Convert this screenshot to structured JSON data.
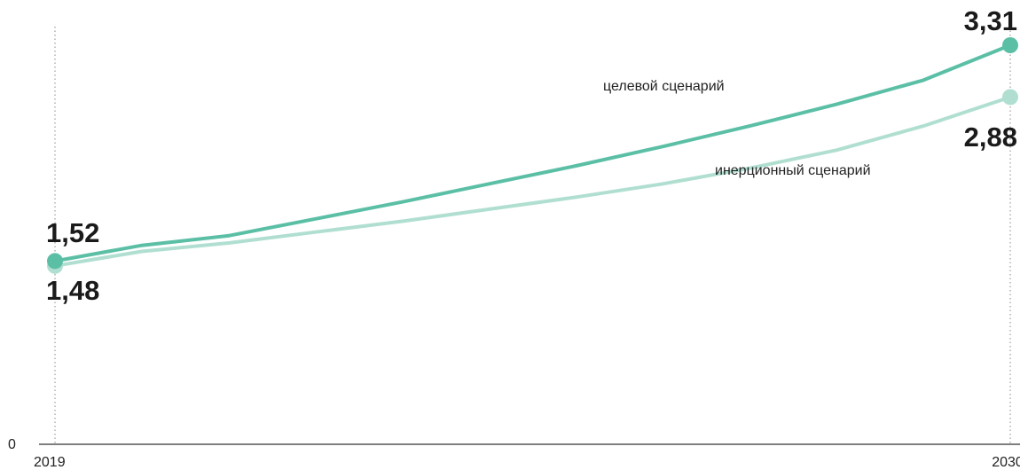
{
  "chart_data": {
    "type": "line",
    "x": [
      2019,
      2020,
      2021,
      2022,
      2023,
      2024,
      2025,
      2026,
      2027,
      2028,
      2029,
      2030
    ],
    "x_tick_labels": [
      "2019",
      "2030"
    ],
    "y_axis_zero_label": "0",
    "ylim": [
      0,
      3.31
    ],
    "series": [
      {
        "name": "инерционный сценарий",
        "color": "#b0dfd1",
        "values": [
          1.48,
          1.6,
          1.67,
          1.76,
          1.85,
          1.95,
          2.05,
          2.16,
          2.29,
          2.44,
          2.64,
          2.88
        ],
        "start_label": "1,48",
        "end_label": "2,88"
      },
      {
        "name": "целевой сценарий",
        "color": "#5bbfa6",
        "values": [
          1.52,
          1.65,
          1.73,
          1.87,
          2.01,
          2.16,
          2.31,
          2.47,
          2.64,
          2.82,
          3.02,
          3.31
        ],
        "start_label": "1,52",
        "end_label": "3,31"
      }
    ],
    "grid": false,
    "legend": "inline labels"
  }
}
